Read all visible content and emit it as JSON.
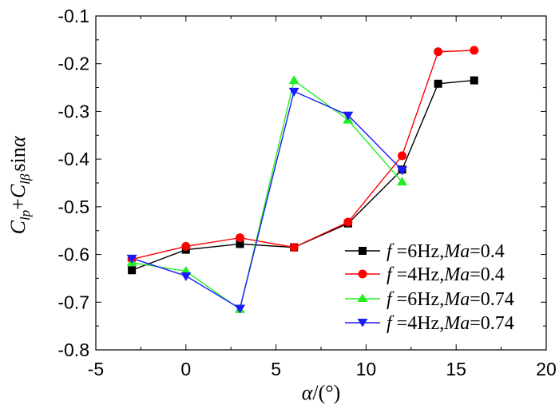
{
  "chart_data": {
    "type": "line",
    "title": "",
    "xlabel": {
      "symbol": "α",
      "unit": "/(°)"
    },
    "ylabel": {
      "c1": "C",
      "s1": "lp",
      "plus": "+",
      "c2": "C",
      "s2": "lβ̇",
      "trig": "sin",
      "var": "α"
    },
    "xlim": [
      -5,
      20
    ],
    "ylim": [
      -0.8,
      -0.1
    ],
    "xticks": [
      -5,
      0,
      5,
      10,
      15,
      20
    ],
    "yticks": [
      -0.8,
      -0.7,
      -0.6,
      -0.5,
      -0.4,
      -0.3,
      -0.2,
      -0.1
    ],
    "xtick_labels": [
      "-5",
      "0",
      "5",
      "10",
      "15",
      "20"
    ],
    "ytick_labels": [
      "-0.8",
      "-0.7",
      "-0.6",
      "-0.5",
      "-0.4",
      "-0.3",
      "-0.2",
      "-0.1"
    ],
    "legend_position": "bottom-right",
    "series": [
      {
        "name": "f =6Hz,Ma=0.4",
        "legend": {
          "f": "f",
          "fval": " =6Hz,",
          "ma": "Ma",
          "maval": "=0.4"
        },
        "color": "#000000",
        "marker": "square",
        "x": [
          -3,
          0,
          3,
          6,
          9,
          12,
          14,
          16
        ],
        "y": [
          -0.633,
          -0.59,
          -0.578,
          -0.585,
          -0.535,
          -0.422,
          -0.242,
          -0.235
        ]
      },
      {
        "name": "f =4Hz,Ma=0.4",
        "legend": {
          "f": "f",
          "fval": " =4Hz,",
          "ma": "Ma",
          "maval": "=0.4"
        },
        "color": "#ff0000",
        "marker": "circle",
        "x": [
          -3,
          0,
          3,
          6,
          9,
          12,
          14,
          16
        ],
        "y": [
          -0.61,
          -0.583,
          -0.565,
          -0.585,
          -0.532,
          -0.393,
          -0.175,
          -0.172
        ]
      },
      {
        "name": "f =6Hz,Ma=0.74",
        "legend": {
          "f": "f",
          "fval": " =6Hz,",
          "ma": "Ma",
          "maval": "=0.74"
        },
        "color": "#22ee22",
        "marker": "triangle-up",
        "x": [
          -3,
          0,
          3,
          6,
          9,
          12
        ],
        "y": [
          -0.617,
          -0.635,
          -0.715,
          -0.235,
          -0.318,
          -0.448
        ]
      },
      {
        "name": "f =4Hz,Ma=0.74",
        "legend": {
          "f": "f",
          "fval": " =4Hz,",
          "ma": "Ma",
          "maval": "=0.74"
        },
        "color": "#1a1aff",
        "marker": "triangle-down",
        "x": [
          -3,
          0,
          3,
          6,
          9,
          12
        ],
        "y": [
          -0.608,
          -0.645,
          -0.713,
          -0.258,
          -0.308,
          -0.423
        ]
      }
    ]
  }
}
